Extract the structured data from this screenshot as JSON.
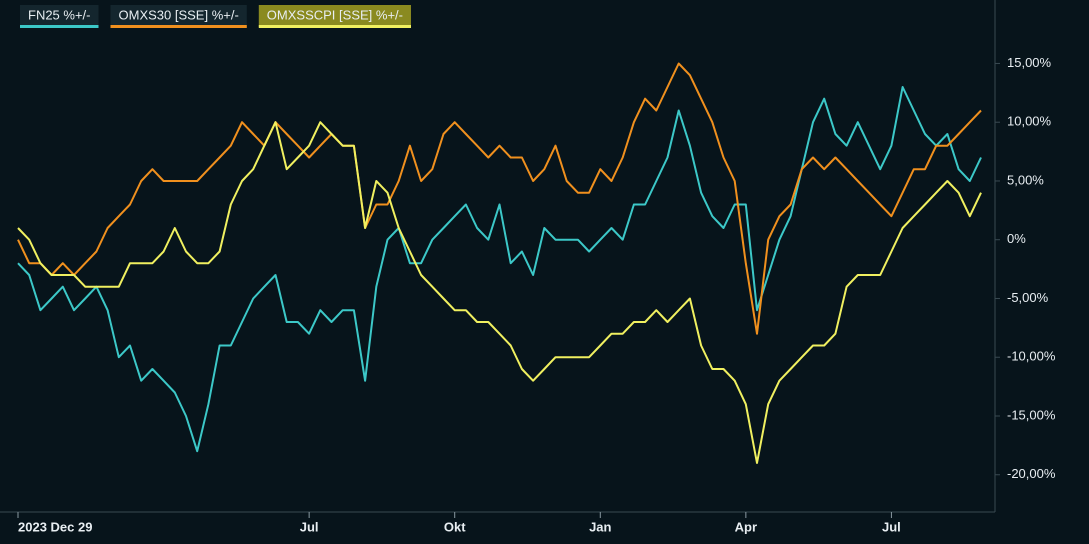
{
  "chart_data": {
    "type": "line",
    "categories": [
      "2023 Dec 29",
      null,
      null,
      null,
      null,
      null,
      null,
      null,
      null,
      null,
      null,
      null,
      null,
      null,
      null,
      null,
      null,
      null,
      null,
      null,
      null,
      null,
      null,
      null,
      null,
      null,
      "Jul",
      null,
      null,
      null,
      null,
      null,
      null,
      null,
      null,
      null,
      null,
      null,
      null,
      "Okt",
      null,
      null,
      null,
      null,
      null,
      null,
      null,
      null,
      null,
      null,
      null,
      null,
      "Jan",
      null,
      null,
      null,
      null,
      null,
      null,
      null,
      null,
      null,
      null,
      null,
      null,
      "Apr",
      null,
      null,
      null,
      null,
      null,
      null,
      null,
      null,
      null,
      null,
      null,
      null,
      "Jul",
      null,
      null,
      null,
      null,
      null,
      null,
      null,
      null
    ],
    "series": [
      {
        "name": "FN25 %+/-",
        "color": "#3cc8c8",
        "values": [
          -2,
          -3,
          -6,
          -5,
          -4,
          -6,
          -5,
          -4,
          -6,
          -10,
          -9,
          -12,
          -11,
          -12,
          -13,
          -15,
          -18,
          -14,
          -9,
          -9,
          -7,
          -5,
          -4,
          -3,
          -7,
          -7,
          -8,
          -6,
          -7,
          -6,
          -6,
          -12,
          -4,
          0,
          1,
          -2,
          -2,
          0,
          1,
          2,
          3,
          1,
          0,
          3,
          -2,
          -1,
          -3,
          1,
          0,
          0,
          0,
          -1,
          0,
          1,
          0,
          3,
          3,
          5,
          7,
          11,
          8,
          4,
          2,
          1,
          3,
          3,
          -6,
          -3,
          0,
          2,
          6,
          10,
          12,
          9,
          8,
          10,
          8,
          6,
          8,
          13,
          11,
          9,
          8,
          9,
          6,
          5,
          7
        ]
      },
      {
        "name": "OMXS30 [SSE] %+/-",
        "color": "#f0901e",
        "values": [
          0,
          -2,
          -2,
          -3,
          -2,
          -3,
          -2,
          -1,
          1,
          2,
          3,
          5,
          6,
          5,
          5,
          5,
          5,
          6,
          7,
          8,
          10,
          9,
          8,
          10,
          9,
          8,
          7,
          8,
          9,
          8,
          8,
          1,
          3,
          3,
          5,
          8,
          5,
          6,
          9,
          10,
          9,
          8,
          7,
          8,
          7,
          7,
          5,
          6,
          8,
          5,
          4,
          4,
          6,
          5,
          7,
          10,
          12,
          11,
          13,
          15,
          14,
          12,
          10,
          7,
          5,
          -2,
          -8,
          0,
          2,
          3,
          6,
          7,
          6,
          7,
          6,
          5,
          4,
          3,
          2,
          4,
          6,
          6,
          8,
          8,
          9,
          10,
          11
        ]
      },
      {
        "name": "OMXSSCPI [SSE] %+/-",
        "color": "#f0f060",
        "values": [
          1,
          0,
          -2,
          -3,
          -3,
          -3,
          -4,
          -4,
          -4,
          -4,
          -2,
          -2,
          -2,
          -1,
          1,
          -1,
          -2,
          -2,
          -1,
          3,
          5,
          6,
          8,
          10,
          6,
          7,
          8,
          10,
          9,
          8,
          8,
          1,
          5,
          4,
          1,
          -1,
          -3,
          -4,
          -5,
          -6,
          -6,
          -7,
          -7,
          -8,
          -9,
          -11,
          -12,
          -11,
          -10,
          -10,
          -10,
          -10,
          -9,
          -8,
          -8,
          -7,
          -7,
          -6,
          -7,
          -6,
          -5,
          -9,
          -11,
          -11,
          -12,
          -14,
          -19,
          -14,
          -12,
          -11,
          -10,
          -9,
          -9,
          -8,
          -4,
          -3,
          -3,
          -3,
          -1,
          1,
          2,
          3,
          4,
          5,
          4,
          2,
          4
        ]
      }
    ],
    "ylim": [
      -23,
      20.4
    ],
    "yticks": [
      {
        "value": -20,
        "label": "-20,00%"
      },
      {
        "value": -15,
        "label": "-15,00%"
      },
      {
        "value": -10,
        "label": "-10,00%"
      },
      {
        "value": -5,
        "label": "-5,00%"
      },
      {
        "value": 0,
        "label": "0%"
      },
      {
        "value": 5,
        "label": "5,00%"
      },
      {
        "value": 10,
        "label": "10,00%"
      },
      {
        "value": 15,
        "label": "15,00%"
      }
    ]
  }
}
